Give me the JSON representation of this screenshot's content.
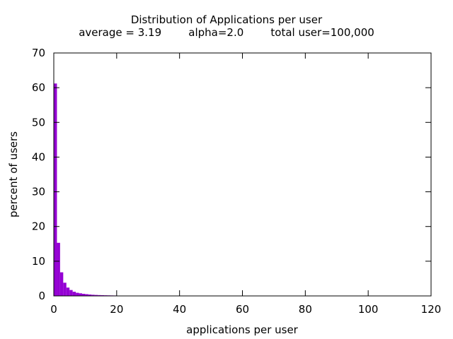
{
  "chart_data": {
    "type": "bar",
    "title": "Distribution of Applications per user",
    "subtitle": "average = 3.19        alpha=2.0        total user=100,000",
    "xlabel": "applications per user",
    "ylabel": "percent of users",
    "xlim": [
      0,
      120
    ],
    "ylim": [
      0,
      70
    ],
    "xticks": [
      "0",
      "20",
      "40",
      "60",
      "80",
      "100",
      "120"
    ],
    "yticks": [
      "0",
      "10",
      "20",
      "30",
      "40",
      "50",
      "60",
      "70"
    ],
    "grid": false,
    "legend": "none",
    "bar_color": "#9400d3",
    "x": [
      1,
      2,
      3,
      4,
      5,
      6,
      7,
      8,
      9,
      10,
      11,
      12,
      13,
      14,
      15,
      16,
      17,
      18,
      19,
      20
    ],
    "values": [
      61.2,
      15.3,
      6.8,
      3.8,
      2.4,
      1.7,
      1.2,
      0.9,
      0.75,
      0.6,
      0.5,
      0.4,
      0.33,
      0.28,
      0.24,
      0.21,
      0.18,
      0.16,
      0.14,
      0.12
    ]
  }
}
